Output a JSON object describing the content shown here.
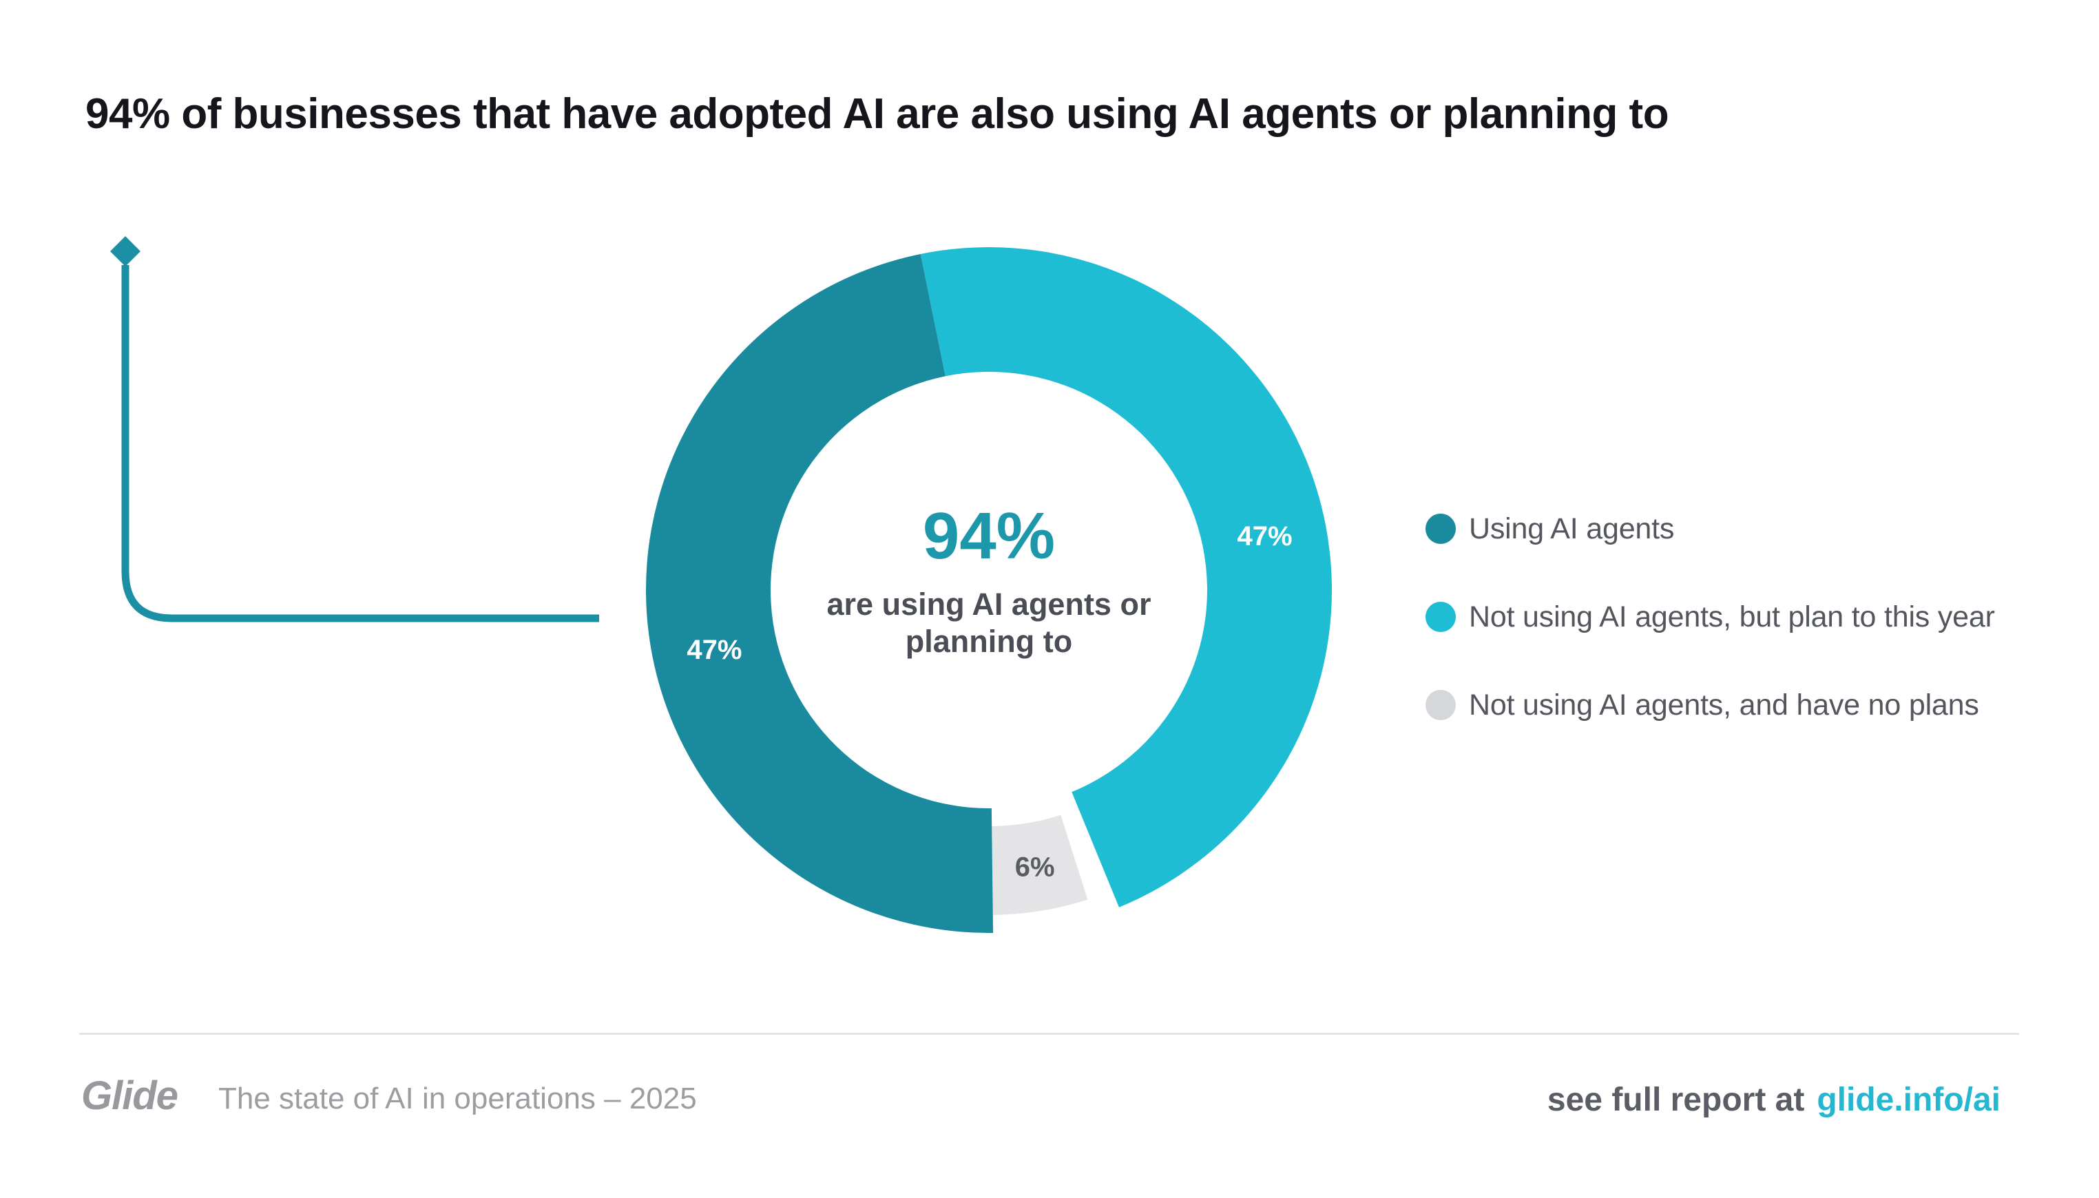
{
  "title": "94% of businesses that have adopted AI are also using AI agents or planning to",
  "colors": {
    "accent_dark": "#1A8A9E",
    "accent_light": "#1FBDD4",
    "neutral_gray": "#E4E4E6",
    "decor_line": "#1B8FA3",
    "center_value": "#1D97AA",
    "link": "#26B7D0"
  },
  "chart_data": {
    "type": "pie",
    "title": "94% of businesses that have adopted AI are also using AI agents or planning to",
    "center": {
      "value": "94%",
      "caption": "are using AI agents or planning to"
    },
    "rotation_deg": -11.5,
    "legend_position": "right",
    "segments": [
      {
        "label": "Not using AI agents, but plan to this year",
        "value": 47,
        "display": "47%",
        "color": "#1FBDD4",
        "label_color": "#FFFFFF",
        "label_angle_deg": 79,
        "pad_before_deg": 0,
        "inset": false
      },
      {
        "label": "Not using AI agents, and have no plans",
        "value": 6,
        "display": "6%",
        "color": "#E4E4E6",
        "label_color": "#5A5C63",
        "label_angle_deg": 170.6,
        "pad_before_deg": 4.6,
        "inset": true
      },
      {
        "label": "Using AI agents",
        "value": 47,
        "display": "47%",
        "color": "#1A8A9E",
        "label_color": "#FFFFFF",
        "label_angle_deg": 257.7,
        "pad_before_deg": 0,
        "inset": false
      }
    ]
  },
  "legend": {
    "items": [
      {
        "label": "Using AI agents",
        "color": "#1A8A9E"
      },
      {
        "label": "Not using AI agents, but plan to this year",
        "color": "#1FBDD4"
      },
      {
        "label": "Not using AI agents, and have no plans",
        "color": "#D6D7DA"
      }
    ]
  },
  "footer": {
    "logo": "Glide",
    "tagline": "The state of AI in operations – 2025",
    "cta": "see full report at",
    "link": "glide.info/ai"
  }
}
